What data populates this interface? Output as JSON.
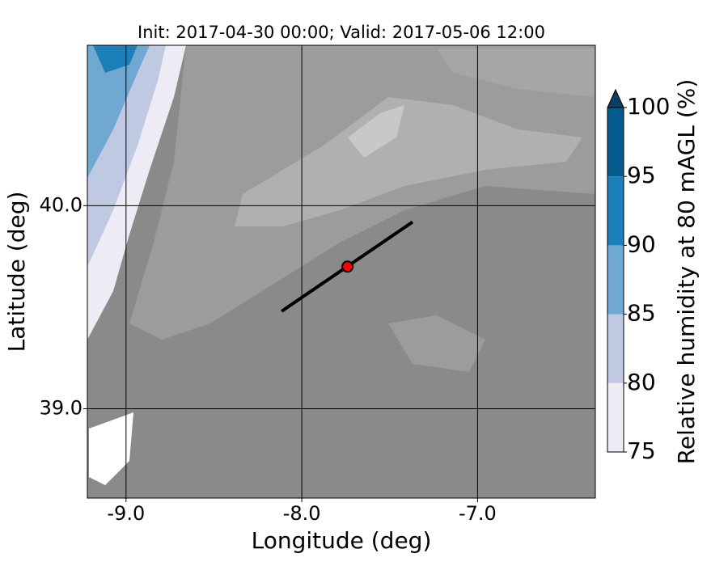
{
  "chart_data": {
    "type": "contour-map",
    "title": "Init: 2017-04-30 00:00; Valid: 2017-05-06 12:00",
    "xlabel": "Longitude (deg)",
    "ylabel": "Latitude (deg)",
    "xlim": [
      -9.22,
      -6.33
    ],
    "ylim": [
      38.56,
      40.79
    ],
    "xticks": [
      {
        "value": -9,
        "label": "-9.0"
      },
      {
        "value": -8,
        "label": "-8.0"
      },
      {
        "value": -7,
        "label": "-7.0"
      }
    ],
    "yticks": [
      {
        "value": 39,
        "label": "39.0"
      },
      {
        "value": 40,
        "label": "40.0"
      }
    ],
    "grid": true,
    "transect": {
      "color": "#000000",
      "lon": [
        -8.115,
        -7.37
      ],
      "lat": [
        39.48,
        39.92
      ]
    },
    "point": {
      "color": "#ff0000",
      "lon": -7.74,
      "lat": 39.7
    },
    "colorbar": {
      "label": "Relative humidity at 80 mAGL (%)",
      "levels": [
        75,
        80,
        85,
        90,
        95,
        100
      ],
      "colors": [
        "#efebf4",
        "#bfc9e2",
        "#6fa8d1",
        "#1c7fb9",
        "#065a8e"
      ],
      "extend_color": "#0a3f63"
    }
  }
}
